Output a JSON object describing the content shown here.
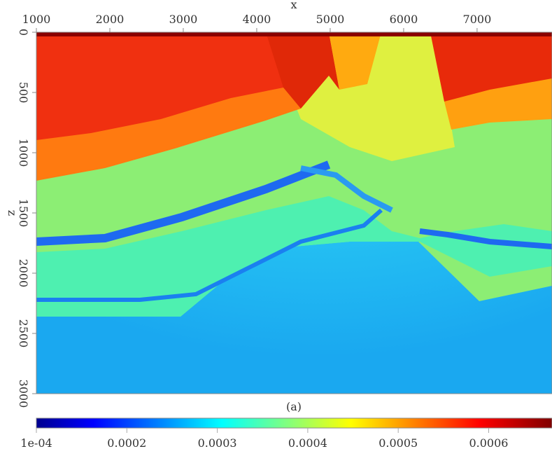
{
  "chart_data": {
    "type": "heatmap",
    "title": "",
    "caption": "(a)",
    "xlabel": "x",
    "ylabel": "z",
    "xlim": [
      1000,
      8020
    ],
    "ylim": [
      0,
      3000
    ],
    "y_inverted": true,
    "x_ticks": [
      "1000",
      "2000",
      "3000",
      "4000",
      "5000",
      "6000",
      "7000"
    ],
    "y_ticks": [
      "0",
      "500",
      "1000",
      "1500",
      "2000",
      "2500",
      "3000"
    ],
    "colorbar": {
      "colormap": "jet",
      "range": [
        0.0001,
        0.00067
      ],
      "ticks": [
        "1e-04",
        "0.0002",
        "0.0003",
        "0.0004",
        "0.0005",
        "0.0006"
      ],
      "tick_values": [
        0.0001,
        0.0002,
        0.0003,
        0.0004,
        0.0005,
        0.0006
      ],
      "placement": "bottom"
    },
    "colors": {
      "low": "#00008f",
      "mid": "#00ffff",
      "high": "#800000"
    }
  }
}
